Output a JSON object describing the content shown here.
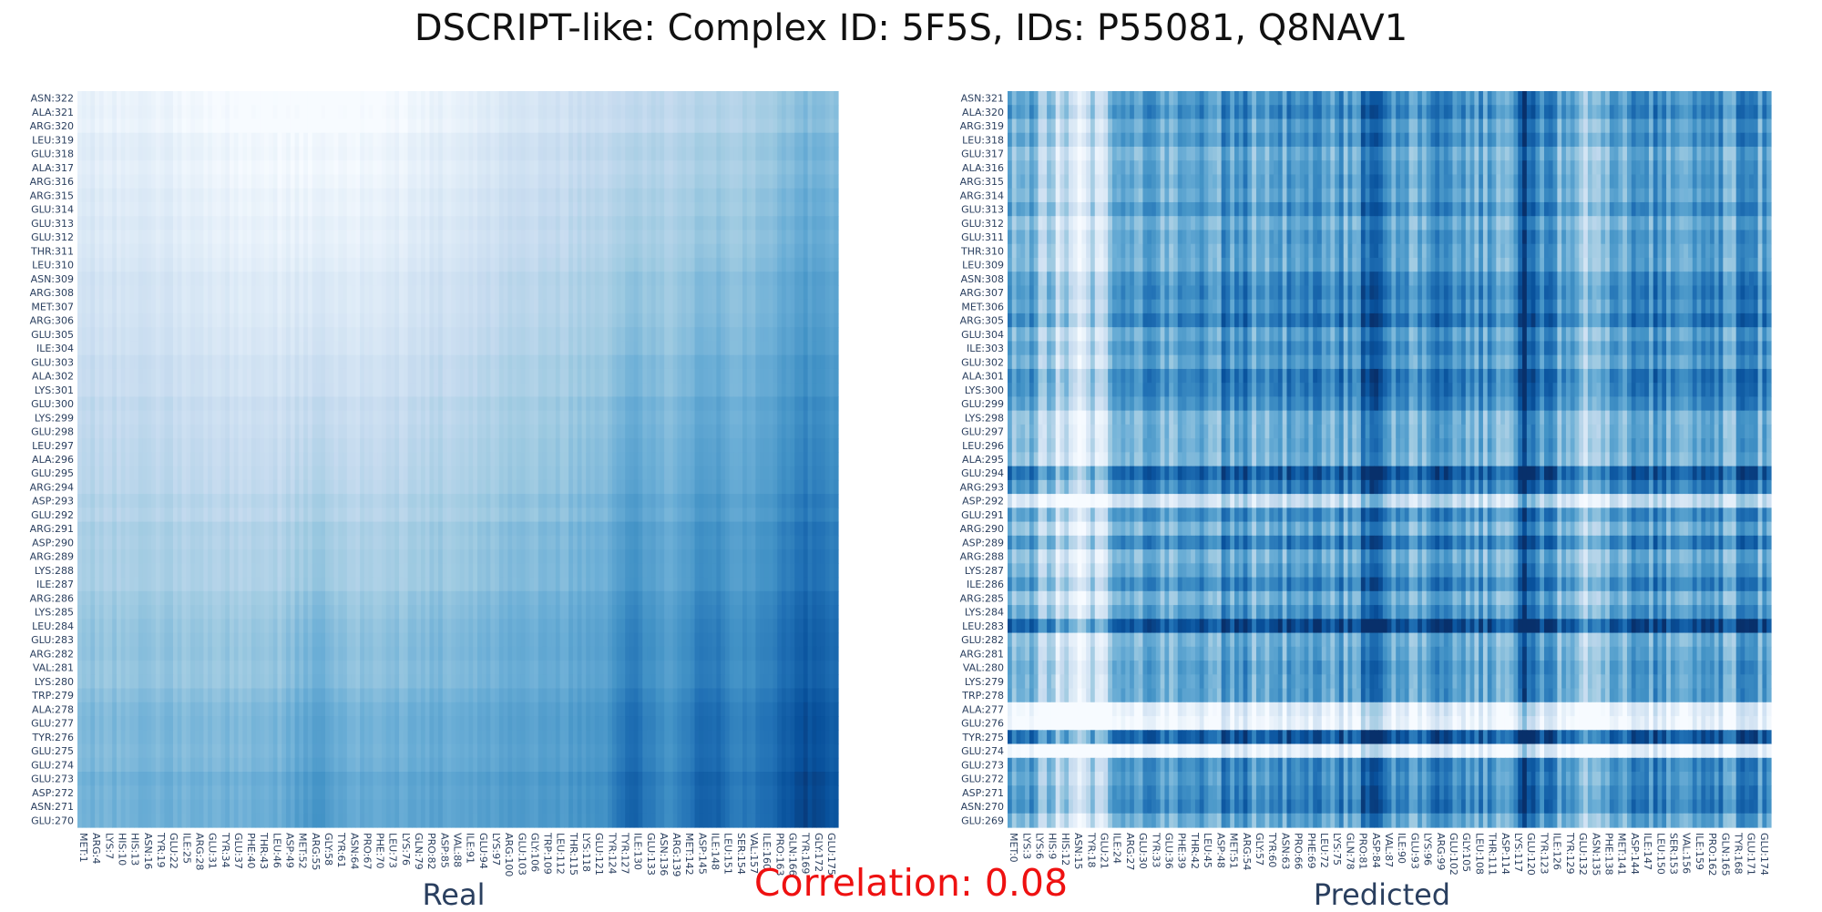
{
  "title": "DSCRIPT-like: Complex ID: 5F5S, IDs: P55081, Q8NAV1",
  "correlation_text": "Correlation: 0.08",
  "colors": {
    "low": "#f7fbff",
    "mid": "#4292c6",
    "high": "#08306b"
  },
  "chart_data": [
    {
      "type": "heatmap",
      "title": "Real",
      "colorscale": "Blues",
      "x_labels": [
        "MET:1",
        "ARG:4",
        "LYS:7",
        "HIS:10",
        "HIS:13",
        "ASN:16",
        "TYR:19",
        "GLU:22",
        "ILE:25",
        "ARG:28",
        "GLU:31",
        "TYR:34",
        "GLU:37",
        "PHE:40",
        "THR:43",
        "LEU:46",
        "ASP:49",
        "MET:52",
        "ARG:55",
        "GLY:58",
        "TYR:61",
        "ASN:64",
        "PRO:67",
        "PHE:70",
        "LEU:73",
        "LYS:76",
        "GLN:79",
        "PRO:82",
        "ASP:85",
        "VAL:88",
        "ILE:91",
        "GLU:94",
        "LYS:97",
        "ARG:100",
        "GLU:103",
        "GLY:106",
        "TRP:109",
        "LEU:112",
        "THR:115",
        "LYS:118",
        "GLU:121",
        "TYR:124",
        "TYR:127",
        "ILE:130",
        "GLU:133",
        "ASN:136",
        "ARG:139",
        "MET:142",
        "ASP:145",
        "ILE:148",
        "LEU:151",
        "SER:154",
        "VAL:157",
        "ILE:160",
        "PRO:163",
        "GLN:166",
        "TYR:169",
        "GLY:172",
        "GLU:175"
      ],
      "y_labels": [
        "ASN:322",
        "ALA:321",
        "ARG:320",
        "LEU:319",
        "GLU:318",
        "ALA:317",
        "ARG:316",
        "ARG:315",
        "GLU:314",
        "GLU:313",
        "GLU:312",
        "THR:311",
        "LEU:310",
        "ASN:309",
        "ARG:308",
        "MET:307",
        "ARG:306",
        "GLU:305",
        "ILE:304",
        "GLU:303",
        "ALA:302",
        "LYS:301",
        "GLU:300",
        "LYS:299",
        "GLU:298",
        "LEU:297",
        "ALA:296",
        "GLU:295",
        "ARG:294",
        "ASP:293",
        "GLU:292",
        "ARG:291",
        "ASP:290",
        "ARG:289",
        "LYS:288",
        "ILE:287",
        "ARG:286",
        "LYS:285",
        "LEU:284",
        "GLU:283",
        "ARG:282",
        "VAL:281",
        "LYS:280",
        "TRP:279",
        "ALA:278",
        "GLU:277",
        "TYR:276",
        "GLU:275",
        "GLU:274",
        "GLU:273",
        "ASP:272",
        "ASN:271",
        "GLU:270"
      ],
      "pattern": "low values top-center, rising toward the bottom and right; dark vertical bands near TYR:127 and ASP:145; darkest cells at lower-right"
    },
    {
      "type": "heatmap",
      "title": "Predicted",
      "colorscale": "Blues",
      "x_labels": [
        "MET:0",
        "LYS:3",
        "LYS:6",
        "HIS:9",
        "HIS:12",
        "ASN:15",
        "TYR:18",
        "GLU:21",
        "ILE:24",
        "ARG:27",
        "GLU:30",
        "TYR:33",
        "GLU:36",
        "PHE:39",
        "THR:42",
        "LEU:45",
        "ASP:48",
        "MET:51",
        "ARG:54",
        "GLY:57",
        "TYR:60",
        "ASN:63",
        "PRO:66",
        "PHE:69",
        "LEU:72",
        "LYS:75",
        "GLN:78",
        "PRO:81",
        "ASP:84",
        "VAL:87",
        "ILE:90",
        "GLU:93",
        "LYS:96",
        "ARG:99",
        "GLU:102",
        "GLY:105",
        "LEU:108",
        "THR:111",
        "ASP:114",
        "LYS:117",
        "GLU:120",
        "TYR:123",
        "ILE:126",
        "TYR:129",
        "GLU:132",
        "ASN:135",
        "PHE:138",
        "MET:141",
        "ASP:144",
        "ILE:147",
        "LEU:150",
        "SER:153",
        "VAL:156",
        "ILE:159",
        "PRO:162",
        "GLN:165",
        "TYR:168",
        "GLU:171",
        "GLU:174"
      ],
      "y_labels": [
        "ASN:321",
        "ALA:320",
        "ARG:319",
        "LEU:318",
        "GLU:317",
        "ALA:316",
        "ARG:315",
        "ARG:314",
        "GLU:313",
        "GLU:312",
        "GLU:311",
        "THR:310",
        "LEU:309",
        "ASN:308",
        "ARG:307",
        "MET:306",
        "ARG:305",
        "GLU:304",
        "ILE:303",
        "GLU:302",
        "ALA:301",
        "LYS:300",
        "GLU:299",
        "LYS:298",
        "GLU:297",
        "LEU:296",
        "ALA:295",
        "GLU:294",
        "ARG:293",
        "ASP:292",
        "GLU:291",
        "ARG:290",
        "ASP:289",
        "ARG:288",
        "LYS:287",
        "ILE:286",
        "ARG:285",
        "LYS:284",
        "LEU:283",
        "GLU:282",
        "ARG:281",
        "VAL:280",
        "LYS:279",
        "TRP:278",
        "ALA:277",
        "GLU:276",
        "TYR:275",
        "GLU:274",
        "GLU:273",
        "GLU:272",
        "ASP:271",
        "ASN:270",
        "GLU:269"
      ],
      "pattern": "strong vertical and horizontal banding; light columns near LYS:6–GLU:21 and ASN:135; light rows at ASP:292, ALA:277, GLU:276; very dark columns near ASP:84 and LYS:117"
    }
  ]
}
